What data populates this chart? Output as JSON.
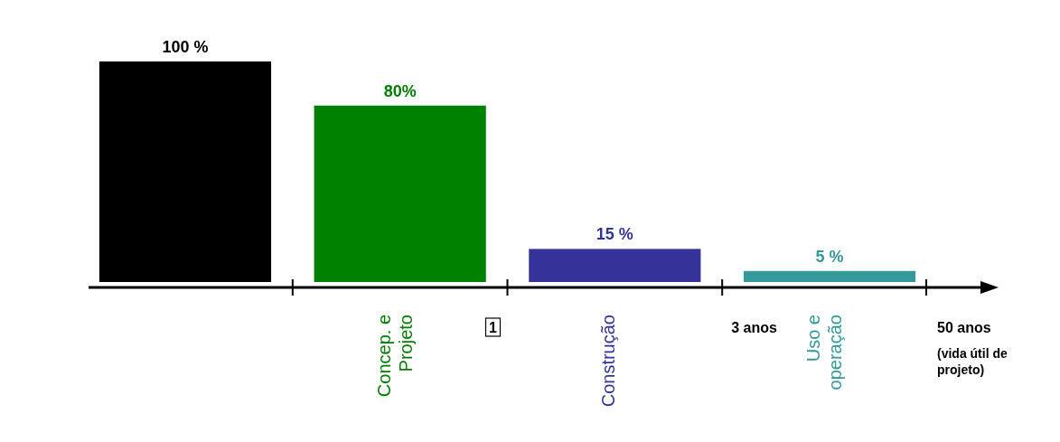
{
  "chart_data": {
    "type": "bar",
    "categories": [
      null,
      "Concep. e Projeto",
      "Construção",
      "Uso e operação"
    ],
    "values": [
      100,
      80,
      15,
      5
    ],
    "colors": [
      "#000000",
      "#008000",
      "#333399",
      "#339999"
    ],
    "value_labels": [
      "100 %",
      "80%",
      "15 %",
      "5 %"
    ],
    "annotations": [
      "1",
      "3 anos",
      "50 anos",
      "(vida útil de projeto)"
    ]
  }
}
